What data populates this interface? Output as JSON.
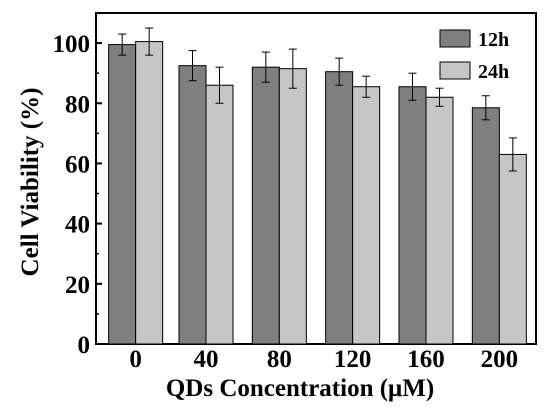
{
  "chart_data": {
    "type": "bar",
    "title": "",
    "xlabel": "QDs Concentration (μM)",
    "ylabel": "Cell Viability (%)",
    "categories": [
      "0",
      "40",
      "80",
      "120",
      "160",
      "200"
    ],
    "ylim": [
      0,
      110
    ],
    "yticks": [
      "0",
      "20",
      "40",
      "60",
      "80",
      "100"
    ],
    "ytick_values": [
      0,
      20,
      40,
      60,
      80,
      100
    ],
    "grid": false,
    "legend_position": "top-right",
    "series": [
      {
        "name": "12h",
        "color": "#7f7f7f",
        "values": [
          99.5,
          92.5,
          92.0,
          90.5,
          85.5,
          78.5
        ],
        "errors": [
          3.5,
          5.0,
          5.0,
          4.5,
          4.5,
          4.0
        ]
      },
      {
        "name": "24h",
        "color": "#c6c6c6",
        "values": [
          100.5,
          86.0,
          91.5,
          85.5,
          82.0,
          63.0
        ],
        "errors": [
          4.5,
          6.0,
          6.5,
          3.5,
          3.0,
          5.5
        ]
      }
    ]
  }
}
